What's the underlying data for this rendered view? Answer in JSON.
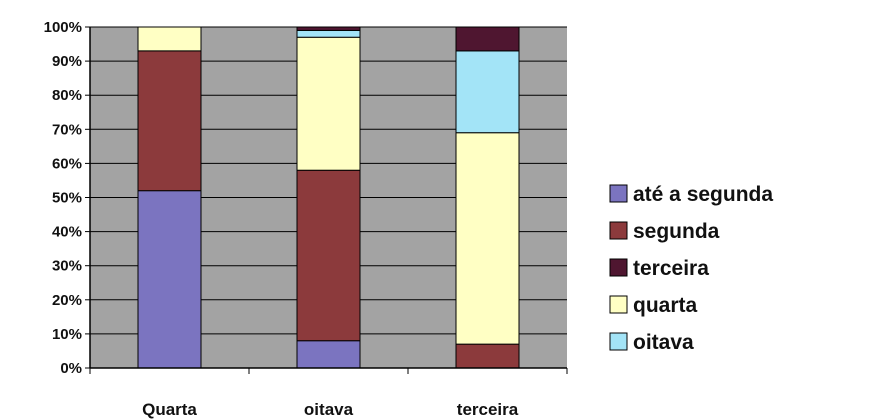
{
  "chart_data": {
    "type": "bar",
    "stacked": true,
    "percent": true,
    "categories": [
      "Quarta",
      "oitava",
      "terceira"
    ],
    "series": [
      {
        "name": "até a segunda",
        "color": "#7b74c0",
        "values": [
          52,
          8,
          0
        ]
      },
      {
        "name": "segunda",
        "color": "#8c3a3c",
        "values": [
          41,
          50,
          7
        ]
      },
      {
        "name": "quarta",
        "color": "#ffffc4",
        "values": [
          7,
          39,
          62
        ]
      },
      {
        "name": "oitava",
        "color": "#a3e4f7",
        "values": [
          0,
          2,
          24
        ]
      },
      {
        "name": "terceira",
        "color": "#4f1630",
        "values": [
          0,
          1,
          7
        ]
      }
    ],
    "legend_order": [
      "até a segunda",
      "segunda",
      "terceira",
      "quarta",
      "oitava"
    ],
    "y_ticks": [
      "0%",
      "10%",
      "20%",
      "30%",
      "40%",
      "50%",
      "60%",
      "70%",
      "80%",
      "90%",
      "100%"
    ],
    "ylim": [
      0,
      100
    ],
    "grid": true,
    "legend_position": "right",
    "plot_background": "#a3a3a3",
    "title": "",
    "xlabel": "",
    "ylabel": ""
  }
}
